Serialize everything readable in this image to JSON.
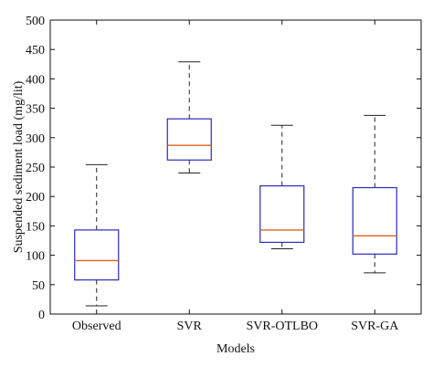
{
  "chart_data": {
    "type": "boxplot",
    "xlabel": "Models",
    "ylabel": "Suspended sediment load (mg/lit)",
    "ylim": [
      0,
      500
    ],
    "yticks": [
      0,
      50,
      100,
      150,
      200,
      250,
      300,
      350,
      400,
      450,
      500
    ],
    "grid": false,
    "categories": [
      "Observed",
      "SVR",
      "SVR-OTLBO",
      "SVR-GA"
    ],
    "boxes": [
      {
        "category": "Observed",
        "whisker_low": 14,
        "q1": 58,
        "median": 91,
        "q3": 143,
        "whisker_high": 254
      },
      {
        "category": "SVR",
        "whisker_low": 240,
        "q1": 262,
        "median": 287,
        "q3": 332,
        "whisker_high": 429
      },
      {
        "category": "SVR-OTLBO",
        "whisker_low": 111,
        "q1": 122,
        "median": 143,
        "q3": 218,
        "whisker_high": 321
      },
      {
        "category": "SVR-GA",
        "whisker_low": 70,
        "q1": 102,
        "median": 133,
        "q3": 215,
        "whisker_high": 338
      }
    ],
    "colors": {
      "box": "#2b2bbf",
      "median": "#e0601f",
      "whisker": "#222222"
    }
  }
}
